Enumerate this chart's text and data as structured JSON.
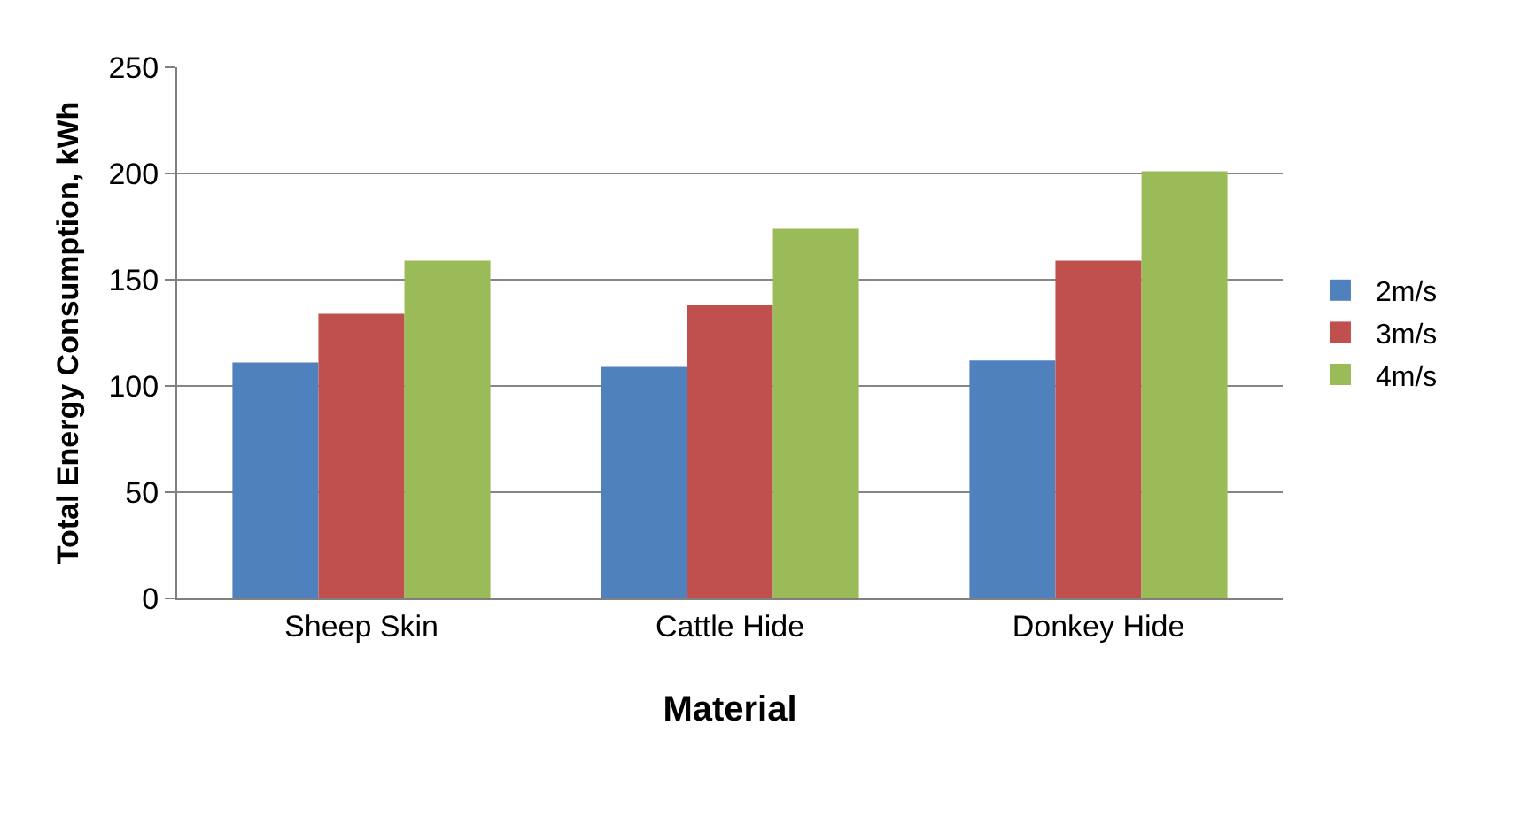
{
  "chart_data": {
    "type": "bar",
    "xlabel": "Material",
    "ylabel": "Total Energy Consumption, kWh",
    "categories": [
      "Sheep Skin",
      "Cattle Hide",
      "Donkey Hide"
    ],
    "series": [
      {
        "name": "2m/s",
        "color": "#4f81bd",
        "values": [
          111,
          109,
          112
        ]
      },
      {
        "name": "3m/s",
        "color": "#c0504d",
        "values": [
          134,
          138,
          159
        ]
      },
      {
        "name": "4m/s",
        "color": "#9bbb59",
        "values": [
          159,
          174,
          201
        ]
      }
    ],
    "ylim": [
      0,
      250
    ],
    "yticks": [
      0,
      50,
      100,
      150,
      200,
      250
    ],
    "grid": "y",
    "legend": "right"
  }
}
